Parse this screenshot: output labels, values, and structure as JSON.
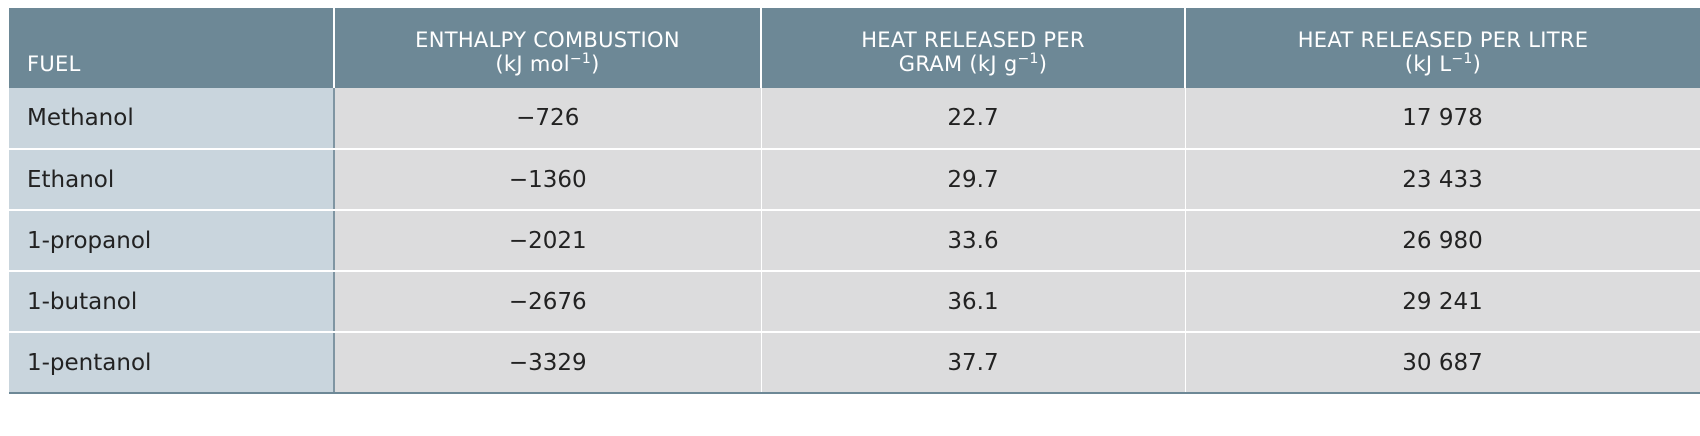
{
  "table": {
    "headers": {
      "fuel": "FUEL",
      "enthalpy_line1": "ENTHALPY COMBUSTION",
      "enthalpy_unit_a": "(kJ mol",
      "enthalpy_unit_exp": "−1",
      "enthalpy_unit_b": ")",
      "per_gram_line1": "HEAT RELEASED PER",
      "per_gram_unit_a": "GRAM (kJ g",
      "per_gram_unit_exp": "−1",
      "per_gram_unit_b": ")",
      "per_litre_line1": "HEAT RELEASED PER LITRE",
      "per_litre_unit_a": "(kJ L",
      "per_litre_unit_exp": "−1",
      "per_litre_unit_b": ")"
    },
    "rows": [
      {
        "fuel": "Methanol",
        "enthalpy": "−726",
        "per_gram": "22.7",
        "per_litre": "17 978"
      },
      {
        "fuel": "Ethanol",
        "enthalpy": "−1360",
        "per_gram": "29.7",
        "per_litre": "23 433"
      },
      {
        "fuel": "1-propanol",
        "enthalpy": "−2021",
        "per_gram": "33.6",
        "per_litre": "26 980"
      },
      {
        "fuel": "1-butanol",
        "enthalpy": "−2676",
        "per_gram": "36.1",
        "per_litre": "29 241"
      },
      {
        "fuel": "1-pentanol",
        "enthalpy": "−3329",
        "per_gram": "37.7",
        "per_litre": "30 687"
      }
    ]
  }
}
